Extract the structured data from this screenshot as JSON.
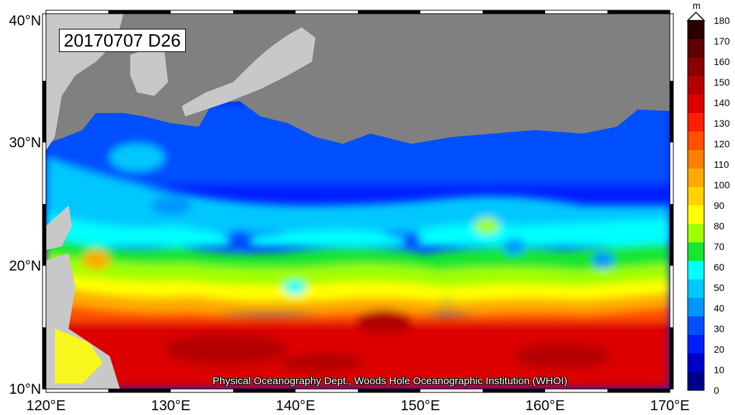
{
  "map": {
    "date_label": "20170707 D26",
    "credit": "Physical Oceanography Dept., Woods Hole Oceanographic Institution (WHOI)",
    "lat_labels": [
      "40°N",
      "30°N",
      "20°N",
      "10°N"
    ],
    "lon_labels": [
      "120°E",
      "130°E",
      "140°E",
      "150°E",
      "160°E",
      "170°E"
    ],
    "land_color": "#808080",
    "lightland_color": "#c8c8c8"
  },
  "colorbar": {
    "unit": "m",
    "ticks": [
      "180",
      "170",
      "160",
      "150",
      "140",
      "130",
      "120",
      "110",
      "100",
      "90",
      "80",
      "70",
      "60",
      "50",
      "40",
      "30",
      "20",
      "10",
      "0"
    ],
    "colors": [
      "#2a0000",
      "#5c0000",
      "#8c0000",
      "#b40000",
      "#dc0000",
      "#ff1e00",
      "#ff5000",
      "#ff8000",
      "#ffaa00",
      "#ffd200",
      "#ffff00",
      "#a0ff00",
      "#14e632",
      "#00ffff",
      "#00c8ff",
      "#0096ff",
      "#0050ff",
      "#001eff",
      "#0000c8",
      "#00008c"
    ]
  }
}
